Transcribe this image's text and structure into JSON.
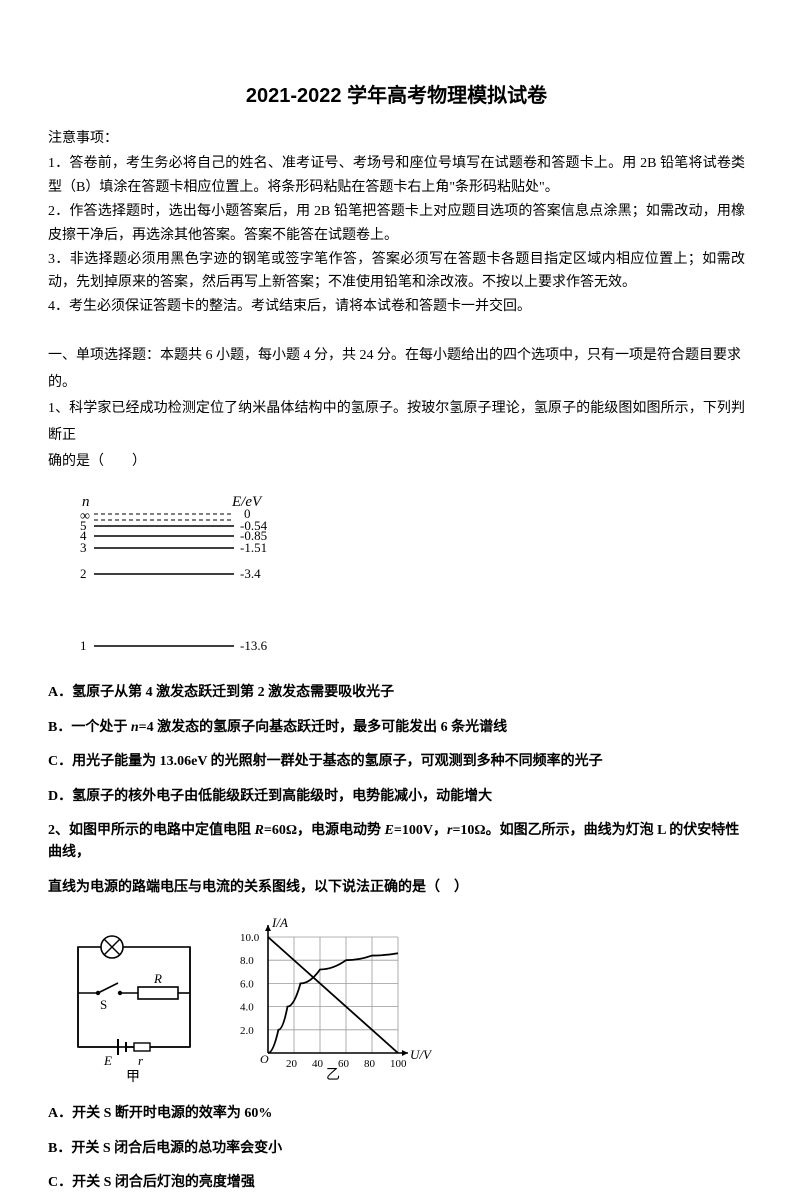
{
  "title": "2021-2022 学年高考物理模拟试卷",
  "notice": {
    "head": "注意事项：",
    "items": [
      "1．答卷前，考生务必将自己的姓名、准考证号、考场号和座位号填写在试题卷和答题卡上。用 2B 铅笔将试卷类型（B）填涂在答题卡相应位置上。将条形码粘贴在答题卡右上角\"条形码粘贴处\"。",
      "2．作答选择题时，选出每小题答案后，用 2B 铅笔把答题卡上对应题目选项的答案信息点涂黑；如需改动，用橡皮擦干净后，再选涂其他答案。答案不能答在试题卷上。",
      "3．非选择题必须用黑色字迹的钢笔或签字笔作答，答案必须写在答题卡各题目指定区域内相应位置上；如需改动，先划掉原来的答案，然后再写上新答案；不准使用铅笔和涂改液。不按以上要求作答无效。",
      "4．考生必须保证答题卡的整洁。考试结束后，请将本试卷和答题卡一并交回。"
    ]
  },
  "section1": {
    "head": "一、单项选择题：本题共 6 小题，每小题 4 分，共 24 分。在每小题给出的四个选项中，只有一项是符合题目要求的。"
  },
  "q1": {
    "text_a": "1、科学家已经成功检测定位了纳米晶体结构中的氢原子。按玻尔氢原子理论，氢原子的能级图如图所示，下列判断正",
    "text_b": "确的是（　　）",
    "diagram": {
      "n_label": "n",
      "e_label": "E/eV",
      "inf": "∞",
      "zero": "0",
      "levels": [
        {
          "n": "5",
          "e": "-0.54"
        },
        {
          "n": "4",
          "e": "-0.85"
        },
        {
          "n": "3",
          "e": "-1.51"
        },
        {
          "n": "2",
          "e": "-3.4"
        },
        {
          "n": "1",
          "e": "-13.6"
        }
      ]
    },
    "options": {
      "A": "A．氢原子从第 4 激发态跃迁到第 2 激发态需要吸收光子",
      "B": "B．一个处于 n=4 激发态的氢原子向基态跃迁时，最多可能发出 6 条光谱线",
      "C": "C．用光子能量为 13.06eV 的光照射一群处于基态的氢原子，可观测到多种不同频率的光子",
      "D": "D．氢原子的核外电子由低能级跃迁到高能级时，电势能减小，动能增大"
    }
  },
  "q2": {
    "text_a": "2、如图甲所示的电路中定值电阻 R=60Ω，电源电动势 E=100V，r=10Ω。如图乙所示，曲线为灯泡 L 的伏安特性曲线，",
    "text_b": "直线为电源的路端电压与电流的关系图线，以下说法正确的是（　）",
    "fig1_label": "甲",
    "fig2_label": "乙",
    "circuit": {
      "L": "L",
      "S": "S",
      "R": "R",
      "E": "E",
      "r": "r"
    },
    "graph": {
      "ylabel": "I/A",
      "xlabel": "U/V",
      "xmax": 100,
      "ymax": 10,
      "xtick_step": 20,
      "ytick_step": 2,
      "xticks": [
        "20",
        "40",
        "60",
        "80",
        "100"
      ],
      "yticks": [
        "2.0",
        "4.0",
        "6.0",
        "8.0",
        "10.0"
      ],
      "line_points": [
        [
          0,
          10
        ],
        [
          100,
          0
        ]
      ],
      "curve_points": [
        [
          0,
          0
        ],
        [
          8,
          2
        ],
        [
          15,
          4
        ],
        [
          25,
          6
        ],
        [
          40,
          7.2
        ],
        [
          60,
          8
        ],
        [
          80,
          8.4
        ],
        [
          100,
          8.6
        ]
      ],
      "grid_color": "#9a9a9a",
      "axis_color": "#000000",
      "line_color": "#000000",
      "curve_color": "#000000",
      "line_width": 1.8
    },
    "options": {
      "A": "A．开关 S 断开时电源的效率为 60%",
      "B": "B．开关 S 闭合后电源的总功率会变小",
      "C": "C．开关 S 闭合后灯泡的亮度增强"
    }
  }
}
